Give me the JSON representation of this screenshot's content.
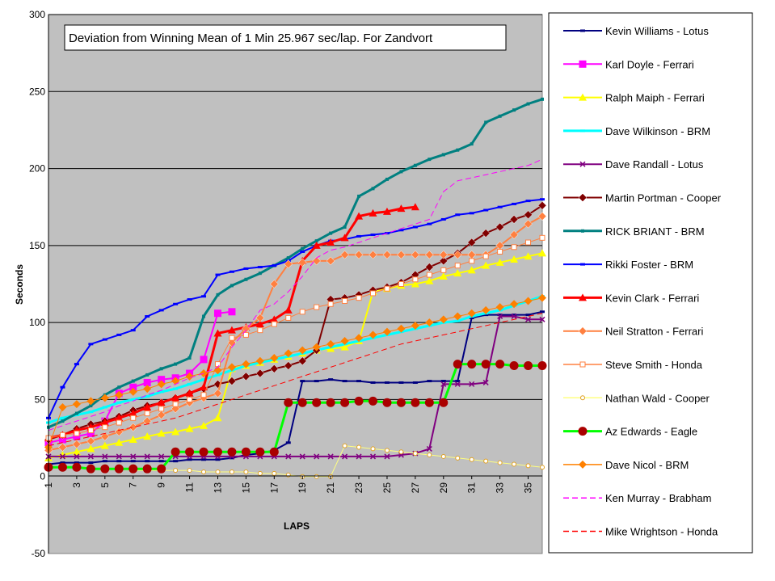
{
  "chart_data": {
    "type": "line",
    "title": "Deviation from Winning Mean of 1 Min 25.967 sec/lap. For Zandvort",
    "xlabel": "LAPS",
    "ylabel": "Seconds",
    "ylim": [
      -50,
      300
    ],
    "yticks": [
      -50,
      0,
      50,
      100,
      150,
      200,
      250,
      300
    ],
    "xlim": [
      1,
      36
    ],
    "xtick_labels": [
      "1",
      "3",
      "5",
      "7",
      "9",
      "11",
      "13",
      "15",
      "17",
      "19",
      "21",
      "23",
      "25",
      "27",
      "29",
      "31",
      "33",
      "35"
    ],
    "plot_background": "#c0c0c0",
    "grid": "horizontal",
    "legend_position": "right",
    "x": [
      1,
      2,
      3,
      4,
      5,
      6,
      7,
      8,
      9,
      10,
      11,
      12,
      13,
      14,
      15,
      16,
      17,
      18,
      19,
      20,
      21,
      22,
      23,
      24,
      25,
      26,
      27,
      28,
      29,
      30,
      31,
      32,
      33,
      34,
      35,
      36
    ],
    "series": [
      {
        "name": "Kevin Williams - Lotus",
        "color": "#000080",
        "marker": "dash",
        "width": 2,
        "values": [
          8,
          9,
          9,
          9,
          10,
          10,
          10,
          10,
          10,
          10,
          11,
          11,
          11,
          12,
          14,
          15,
          17,
          22,
          62,
          62,
          63,
          62,
          62,
          61,
          61,
          61,
          61,
          62,
          62,
          62,
          103,
          105,
          105,
          105,
          105,
          107
        ]
      },
      {
        "name": "Karl Doyle - Ferrari",
        "color": "#ff00ff",
        "marker": "square",
        "width": 2,
        "values": [
          22,
          24,
          26,
          28,
          36,
          54,
          58,
          61,
          63,
          64,
          67,
          76,
          106,
          107,
          null,
          null,
          null,
          null,
          null,
          null,
          null,
          null,
          null,
          null,
          null,
          null,
          null,
          null,
          null,
          null,
          null,
          null,
          null,
          null,
          null,
          null
        ]
      },
      {
        "name": "Ralph Maiph - Ferrari",
        "color": "#ffff00",
        "marker": "triangle",
        "width": 2,
        "values": [
          12,
          14,
          16,
          18,
          20,
          22,
          24,
          26,
          28,
          29,
          31,
          33,
          38,
          70,
          72,
          74,
          76,
          78,
          80,
          82,
          83,
          84,
          88,
          120,
          122,
          124,
          125,
          127,
          130,
          132,
          134,
          137,
          139,
          141,
          143,
          145
        ]
      },
      {
        "name": "Dave Wilkinson - BRM",
        "color": "#00ffff",
        "marker": "dash",
        "width": 3,
        "values": [
          35,
          38,
          40,
          42,
          45,
          48,
          50,
          52,
          55,
          57,
          60,
          63,
          66,
          69,
          72,
          74,
          76,
          78,
          80,
          82,
          84,
          86,
          88,
          90,
          92,
          94,
          96,
          98,
          100,
          101,
          104,
          106,
          108,
          111,
          114,
          117
        ]
      },
      {
        "name": "Dave Randall - Lotus",
        "color": "#800080",
        "marker": "star",
        "width": 2,
        "values": [
          13,
          13,
          13,
          13,
          13,
          13,
          13,
          13,
          13,
          13,
          13,
          13,
          13,
          13,
          13,
          13,
          13,
          13,
          13,
          13,
          13,
          13,
          13,
          13,
          13,
          14,
          15,
          18,
          60,
          60,
          60,
          61,
          104,
          104,
          102,
          102
        ]
      },
      {
        "name": "Martin Portman - Cooper",
        "color": "#800000",
        "marker": "diamond",
        "width": 2,
        "values": [
          24,
          27,
          31,
          34,
          36,
          39,
          43,
          46,
          48,
          51,
          54,
          57,
          60,
          62,
          65,
          67,
          70,
          72,
          75,
          82,
          115,
          116,
          118,
          121,
          123,
          126,
          131,
          136,
          140,
          145,
          152,
          158,
          162,
          167,
          170,
          176
        ]
      },
      {
        "name": "RICK BRIANT - BRM",
        "color": "#008080",
        "marker": "smallsquare",
        "width": 3,
        "values": [
          32,
          36,
          41,
          46,
          53,
          58,
          62,
          66,
          70,
          73,
          77,
          104,
          118,
          124,
          128,
          132,
          137,
          142,
          148,
          153,
          158,
          162,
          182,
          187,
          193,
          198,
          202,
          206,
          209,
          212,
          216,
          230,
          234,
          238,
          242,
          245
        ]
      },
      {
        "name": "Rikki Foster - BRM",
        "color": "#0000ff",
        "marker": "dash",
        "width": 2,
        "values": [
          38,
          58,
          73,
          86,
          89,
          92,
          95,
          104,
          108,
          112,
          115,
          117,
          131,
          133,
          135,
          136,
          137,
          140,
          146,
          150,
          153,
          154,
          156,
          157,
          158,
          160,
          162,
          164,
          167,
          170,
          171,
          173,
          175,
          177,
          179,
          180
        ]
      },
      {
        "name": "Kevin Clark - Ferrari",
        "color": "#ff0000",
        "marker": "triangle",
        "width": 3,
        "values": [
          25,
          27,
          30,
          32,
          35,
          38,
          41,
          45,
          48,
          51,
          54,
          58,
          93,
          95,
          97,
          99,
          102,
          108,
          140,
          150,
          152,
          155,
          169,
          171,
          172,
          174,
          175,
          null,
          null,
          null,
          null,
          null,
          null,
          null,
          null,
          null
        ]
      },
      {
        "name": "Neil Stratton - Ferrari",
        "color": "#ff8040",
        "marker": "diamond",
        "width": 2,
        "values": [
          17,
          19,
          21,
          23,
          26,
          29,
          32,
          36,
          40,
          44,
          48,
          51,
          54,
          87,
          96,
          103,
          125,
          138,
          139,
          140,
          140,
          144,
          144,
          144,
          144,
          144,
          144,
          144,
          144,
          144,
          144,
          144,
          150,
          157,
          164,
          169
        ]
      },
      {
        "name": "Steve Smith - Honda",
        "color": "#ff8040",
        "marker": "opensquare",
        "width": 1,
        "values": [
          25,
          27,
          28,
          30,
          32,
          35,
          38,
          41,
          44,
          47,
          50,
          53,
          73,
          90,
          92,
          95,
          99,
          103,
          107,
          110,
          112,
          114,
          116,
          119,
          122,
          125,
          128,
          131,
          134,
          137,
          140,
          143,
          146,
          149,
          152,
          155
        ]
      },
      {
        "name": "Nathan Wald - Cooper",
        "color": "#ffff80",
        "marker": "circle",
        "width": 1,
        "values": [
          6,
          6,
          6,
          5,
          5,
          5,
          4,
          4,
          4,
          4,
          4,
          3,
          3,
          3,
          3,
          2,
          2,
          1,
          0,
          0,
          0,
          20,
          19,
          18,
          17,
          16,
          15,
          14,
          13,
          12,
          11,
          10,
          9,
          8,
          7,
          6
        ]
      },
      {
        "name": "Az Edwards - Eagle",
        "color": "#00ff00",
        "marker": "bigcircle",
        "width": 3,
        "values": [
          6,
          6,
          6,
          5,
          5,
          5,
          5,
          5,
          5,
          16,
          16,
          16,
          16,
          16,
          16,
          16,
          16,
          48,
          48,
          48,
          48,
          48,
          49,
          49,
          48,
          48,
          48,
          48,
          48,
          73,
          73,
          73,
          73,
          72,
          72,
          72
        ]
      },
      {
        "name": "Dave Nicol - BRM",
        "color": "#ff8000",
        "marker": "diamond",
        "width": 1,
        "values": [
          19,
          45,
          47,
          49,
          51,
          53,
          55,
          57,
          60,
          62,
          65,
          67,
          69,
          71,
          73,
          75,
          77,
          80,
          82,
          84,
          86,
          88,
          90,
          92,
          94,
          96,
          98,
          100,
          102,
          104,
          106,
          108,
          110,
          112,
          114,
          116
        ]
      },
      {
        "name": "Ken Murray - Brabham",
        "color": "#ff00ff",
        "marker": "dashline",
        "width": 1,
        "values": [
          30,
          33,
          36,
          39,
          42,
          46,
          49,
          53,
          56,
          60,
          64,
          67,
          71,
          84,
          95,
          108,
          112,
          120,
          130,
          142,
          147,
          149,
          152,
          155,
          158,
          161,
          164,
          167,
          185,
          192,
          194,
          196,
          198,
          200,
          202,
          206
        ]
      },
      {
        "name": "Mike Wrightson - Honda",
        "color": "#ff0000",
        "marker": "dashline",
        "width": 1,
        "values": [
          20,
          22,
          24,
          26,
          28,
          30,
          32,
          34,
          36,
          38,
          41,
          44,
          47,
          50,
          53,
          56,
          59,
          62,
          65,
          68,
          71,
          74,
          77,
          80,
          83,
          86,
          88,
          90,
          92,
          94,
          96,
          98,
          100,
          102,
          104,
          106
        ]
      }
    ]
  }
}
